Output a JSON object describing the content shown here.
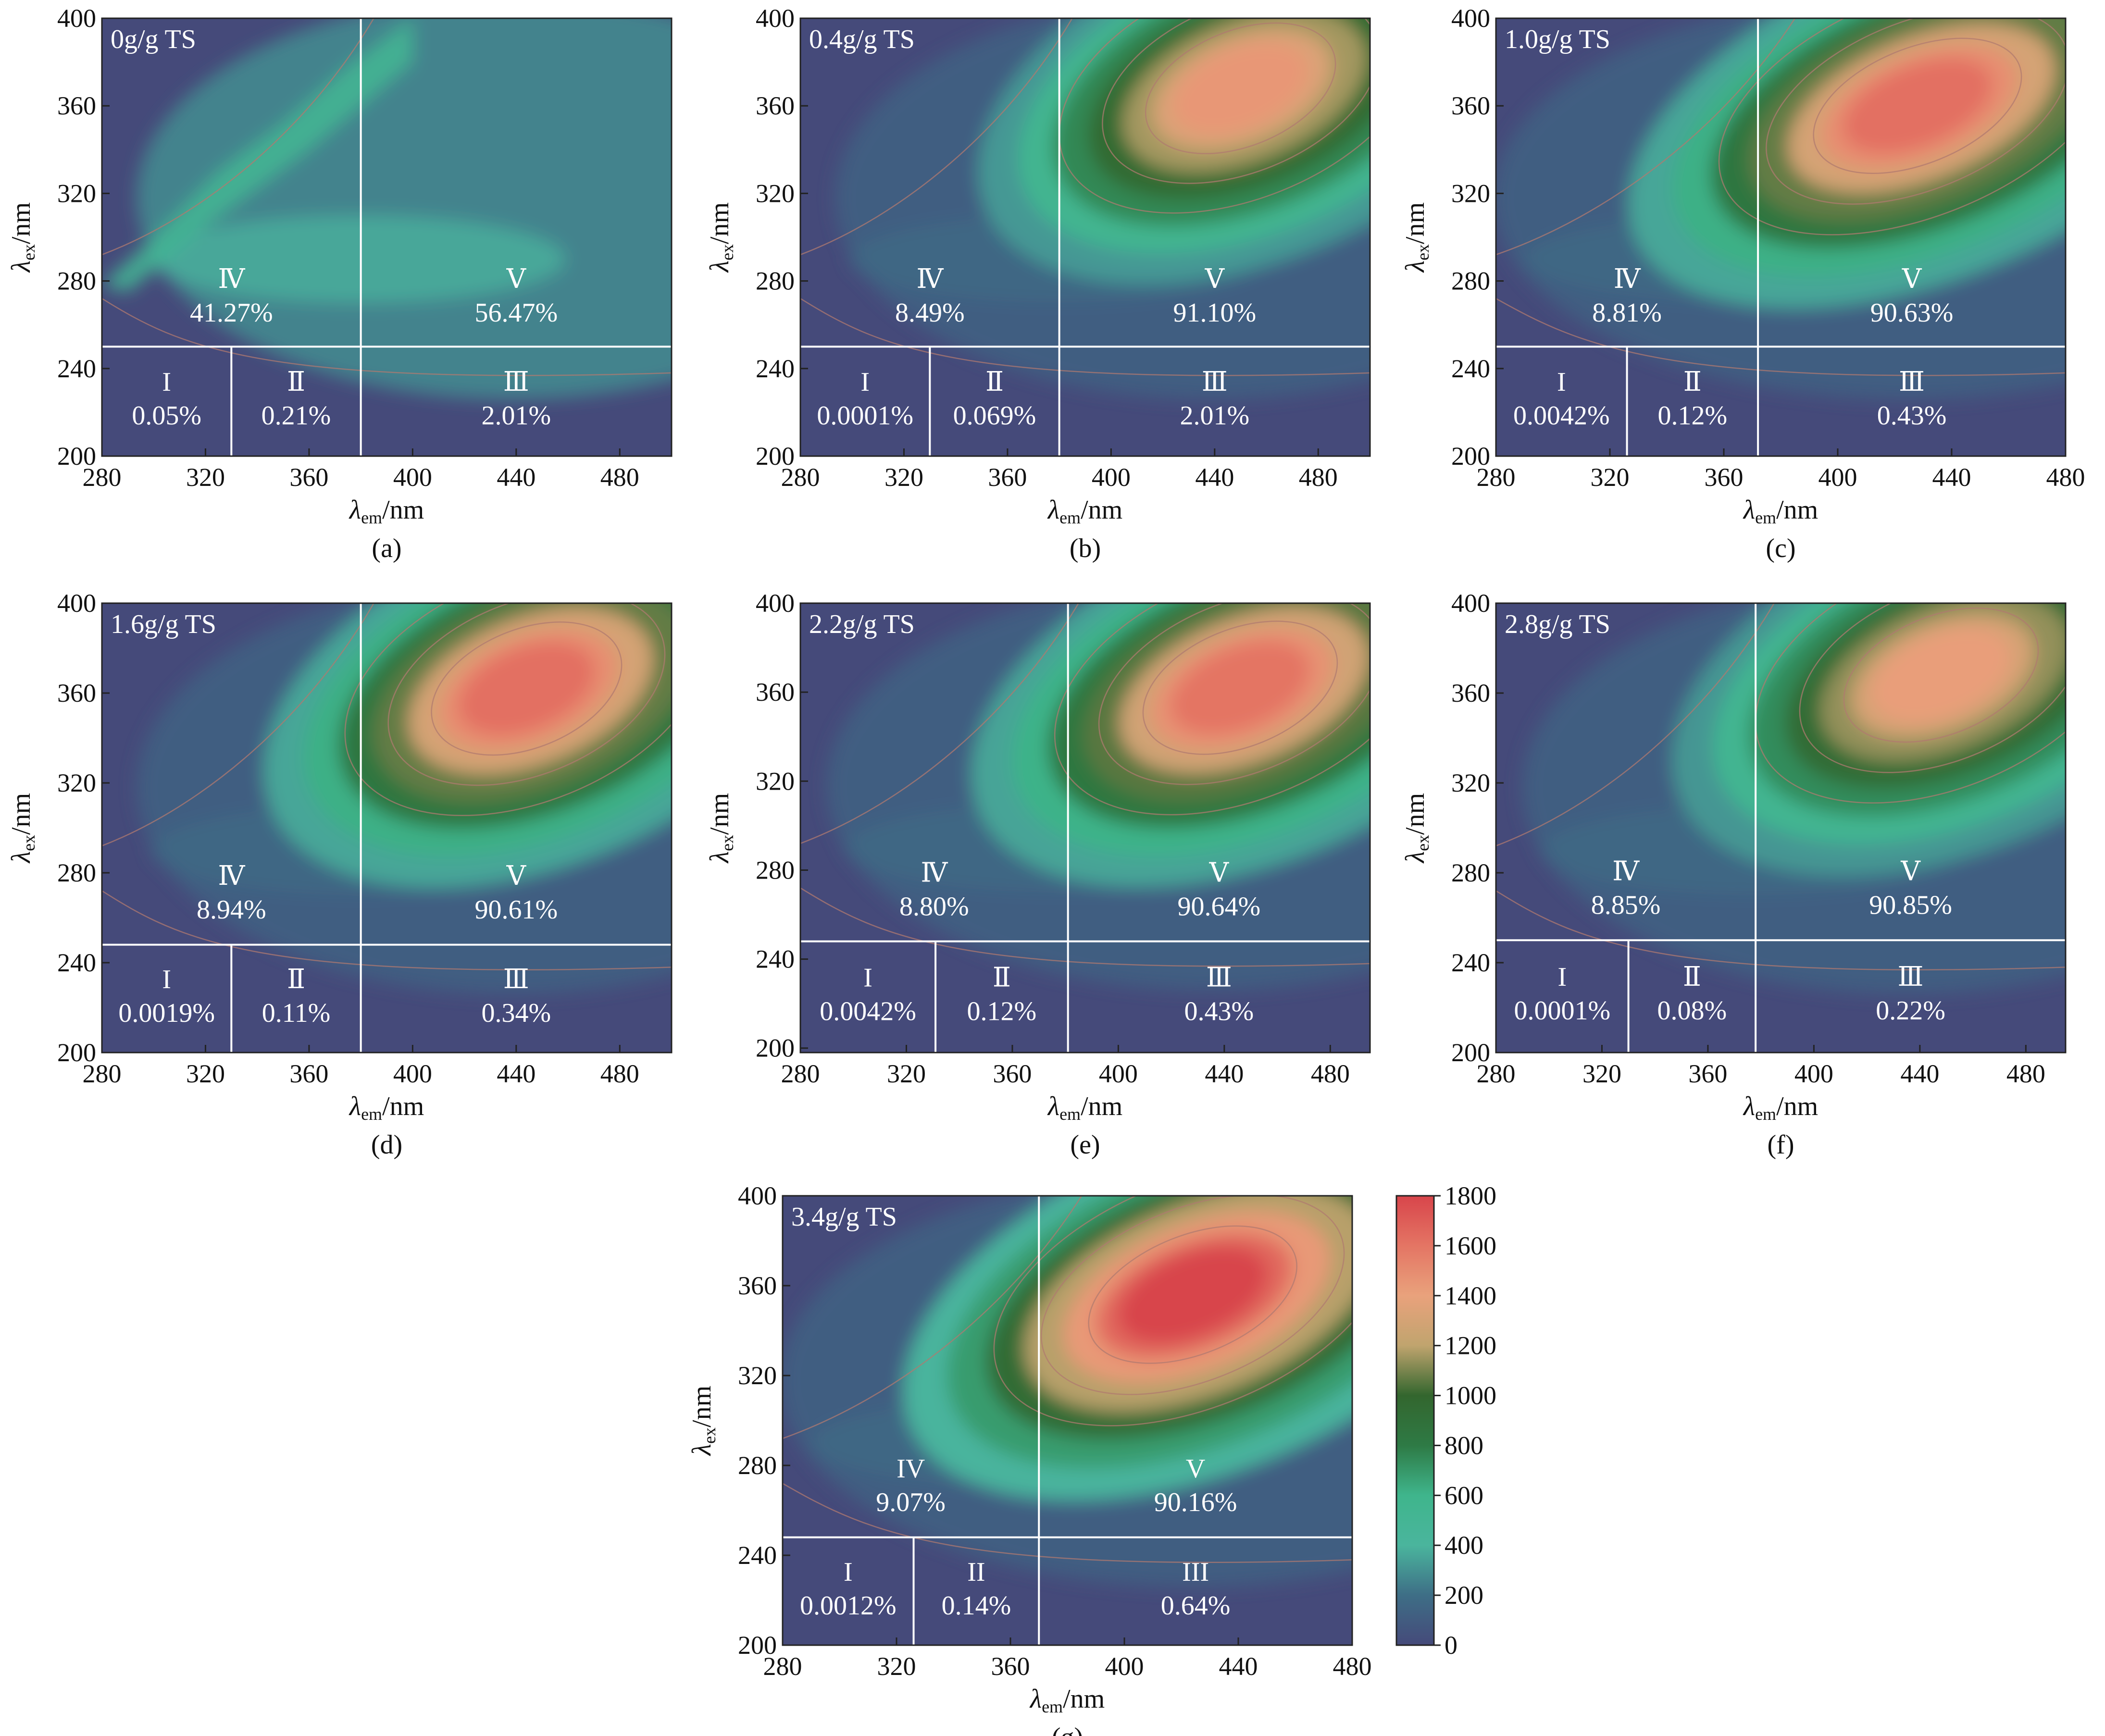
{
  "figure": {
    "colorbar": {
      "ticks": [
        0,
        200,
        400,
        600,
        800,
        1000,
        1200,
        1400,
        1600,
        1800
      ],
      "min": 0,
      "max": 1800,
      "colors": [
        {
          "v": 0,
          "c": "#454a7a"
        },
        {
          "v": 200,
          "c": "#3e6e86"
        },
        {
          "v": 400,
          "c": "#4ab59d"
        },
        {
          "v": 600,
          "c": "#3fb58c"
        },
        {
          "v": 800,
          "c": "#2e7a45"
        },
        {
          "v": 1000,
          "c": "#33662e"
        },
        {
          "v": 1200,
          "c": "#c0a46e"
        },
        {
          "v": 1400,
          "c": "#e9a27c"
        },
        {
          "v": 1600,
          "c": "#e47564"
        },
        {
          "v": 1800,
          "c": "#d8454b"
        }
      ]
    }
  },
  "chart_data": [
    {
      "type": "heatmap",
      "panel_label": "(a)",
      "sample_label": "0g/g TS",
      "xlabel": "λem/nm",
      "ylabel": "λex/nm",
      "xlim": [
        280,
        500
      ],
      "ylim": [
        200,
        400
      ],
      "xticks": [
        280,
        320,
        360,
        400,
        440,
        480
      ],
      "yticks": [
        200,
        240,
        280,
        320,
        360,
        400
      ],
      "boundaries": {
        "em_I_II": 330,
        "em_II_III": 380,
        "ex_split": 250
      },
      "regions": [
        {
          "id": "I",
          "numeral": "I",
          "percent": "0.05%"
        },
        {
          "id": "II",
          "numeral": "Ⅱ",
          "percent": "0.21%"
        },
        {
          "id": "III",
          "numeral": "Ⅲ",
          "percent": "2.01%"
        },
        {
          "id": "IV",
          "numeral": "Ⅳ",
          "percent": "41.27%"
        },
        {
          "id": "V",
          "numeral": "Ⅴ",
          "percent": "56.47%"
        }
      ],
      "peaks": [],
      "background_level": 180
    },
    {
      "type": "heatmap",
      "panel_label": "(b)",
      "sample_label": "0.4g/g TS",
      "xlabel": "λem/nm",
      "ylabel": "λex/nm",
      "xlim": [
        280,
        500
      ],
      "ylim": [
        200,
        400
      ],
      "xticks": [
        280,
        320,
        360,
        400,
        440,
        480
      ],
      "yticks": [
        200,
        240,
        280,
        320,
        360,
        400
      ],
      "boundaries": {
        "em_I_II": 330,
        "em_II_III": 380,
        "ex_split": 250
      },
      "regions": [
        {
          "id": "I",
          "numeral": "I",
          "percent": "0.0001%"
        },
        {
          "id": "II",
          "numeral": "Ⅱ",
          "percent": "0.069%"
        },
        {
          "id": "III",
          "numeral": "Ⅲ",
          "percent": "2.01%"
        },
        {
          "id": "IV",
          "numeral": "Ⅳ",
          "percent": "8.49%"
        },
        {
          "id": "V",
          "numeral": "Ⅴ",
          "percent": "91.10%"
        }
      ],
      "peaks": [
        {
          "em": 450,
          "ex": 368,
          "intensity": 1450
        }
      ],
      "background_level": 80
    },
    {
      "type": "heatmap",
      "panel_label": "(c)",
      "sample_label": "1.0g/g TS",
      "xlabel": "λem/nm",
      "ylabel": "λex/nm",
      "xlim": [
        280,
        480
      ],
      "ylim": [
        200,
        400
      ],
      "xticks": [
        280,
        320,
        360,
        400,
        440,
        480
      ],
      "yticks": [
        200,
        240,
        280,
        320,
        360,
        400
      ],
      "boundaries": {
        "em_I_II": 326,
        "em_II_III": 372,
        "ex_split": 250
      },
      "regions": [
        {
          "id": "I",
          "numeral": "I",
          "percent": "0.0042%"
        },
        {
          "id": "II",
          "numeral": "Ⅱ",
          "percent": "0.12%"
        },
        {
          "id": "III",
          "numeral": "Ⅲ",
          "percent": "0.43%"
        },
        {
          "id": "IV",
          "numeral": "Ⅳ",
          "percent": "8.81%"
        },
        {
          "id": "V",
          "numeral": "Ⅴ",
          "percent": "90.63%"
        }
      ],
      "peaks": [
        {
          "em": 428,
          "ex": 360,
          "intensity": 1620
        }
      ],
      "background_level": 80
    },
    {
      "type": "heatmap",
      "panel_label": "(d)",
      "sample_label": "1.6g/g TS",
      "xlabel": "λem/nm",
      "ylabel": "λex/nm",
      "xlim": [
        280,
        500
      ],
      "ylim": [
        200,
        400
      ],
      "xticks": [
        280,
        320,
        360,
        400,
        440,
        480
      ],
      "yticks": [
        200,
        240,
        280,
        320,
        360,
        400
      ],
      "boundaries": {
        "em_I_II": 330,
        "em_II_III": 380,
        "ex_split": 248
      },
      "regions": [
        {
          "id": "I",
          "numeral": "I",
          "percent": "0.0019%"
        },
        {
          "id": "II",
          "numeral": "Ⅱ",
          "percent": "0.11%"
        },
        {
          "id": "III",
          "numeral": "Ⅲ",
          "percent": "0.34%"
        },
        {
          "id": "IV",
          "numeral": "Ⅳ",
          "percent": "8.94%"
        },
        {
          "id": "V",
          "numeral": "Ⅴ",
          "percent": "90.61%"
        }
      ],
      "peaks": [
        {
          "em": 444,
          "ex": 362,
          "intensity": 1620
        }
      ],
      "background_level": 80
    },
    {
      "type": "heatmap",
      "panel_label": "(e)",
      "sample_label": "2.2g/g TS",
      "xlabel": "λem/nm",
      "ylabel": "λex/nm",
      "xlim": [
        280,
        495
      ],
      "ylim": [
        198,
        400
      ],
      "xticks": [
        280,
        320,
        360,
        400,
        440,
        480
      ],
      "yticks": [
        200,
        240,
        280,
        320,
        360,
        400
      ],
      "boundaries": {
        "em_I_II": 331,
        "em_II_III": 381,
        "ex_split": 248
      },
      "regions": [
        {
          "id": "I",
          "numeral": "I",
          "percent": "0.0042%"
        },
        {
          "id": "II",
          "numeral": "Ⅱ",
          "percent": "0.12%"
        },
        {
          "id": "III",
          "numeral": "Ⅲ",
          "percent": "0.43%"
        },
        {
          "id": "IV",
          "numeral": "Ⅳ",
          "percent": "8.80%"
        },
        {
          "id": "V",
          "numeral": "Ⅴ",
          "percent": "90.64%"
        }
      ],
      "peaks": [
        {
          "em": 446,
          "ex": 362,
          "intensity": 1600
        }
      ],
      "background_level": 80
    },
    {
      "type": "heatmap",
      "panel_label": "(f)",
      "sample_label": "2.8g/g TS",
      "xlabel": "λem/nm",
      "ylabel": "λex/nm",
      "xlim": [
        280,
        495
      ],
      "ylim": [
        200,
        400
      ],
      "xticks": [
        280,
        320,
        360,
        400,
        440,
        480
      ],
      "yticks": [
        200,
        240,
        280,
        320,
        360,
        400
      ],
      "boundaries": {
        "em_I_II": 330,
        "em_II_III": 378,
        "ex_split": 250
      },
      "regions": [
        {
          "id": "I",
          "numeral": "I",
          "percent": "0.0001%"
        },
        {
          "id": "II",
          "numeral": "Ⅱ",
          "percent": "0.08%"
        },
        {
          "id": "III",
          "numeral": "Ⅲ",
          "percent": "0.22%"
        },
        {
          "id": "IV",
          "numeral": "Ⅳ",
          "percent": "8.85%"
        },
        {
          "id": "V",
          "numeral": "Ⅴ",
          "percent": "90.85%"
        }
      ],
      "peaks": [
        {
          "em": 448,
          "ex": 368,
          "intensity": 1420
        }
      ],
      "background_level": 80
    },
    {
      "type": "heatmap",
      "panel_label": "(g)",
      "sample_label": "3.4g/g TS",
      "xlabel": "λem/nm",
      "ylabel": "λex/nm",
      "xlim": [
        280,
        480
      ],
      "ylim": [
        200,
        400
      ],
      "xticks": [
        280,
        320,
        360,
        400,
        440,
        480
      ],
      "yticks": [
        200,
        240,
        280,
        320,
        360,
        400
      ],
      "boundaries": {
        "em_I_II": 326,
        "em_II_III": 370,
        "ex_split": 248
      },
      "regions": [
        {
          "id": "I",
          "numeral": "I",
          "percent": "0.0012%"
        },
        {
          "id": "II",
          "numeral": "II",
          "percent": "0.14%"
        },
        {
          "id": "III",
          "numeral": "III",
          "percent": "0.64%"
        },
        {
          "id": "IV",
          "numeral": "IV",
          "percent": "9.07%"
        },
        {
          "id": "V",
          "numeral": "V",
          "percent": "90.16%"
        }
      ],
      "peaks": [
        {
          "em": 424,
          "ex": 356,
          "intensity": 1800
        }
      ],
      "background_level": 80
    }
  ]
}
